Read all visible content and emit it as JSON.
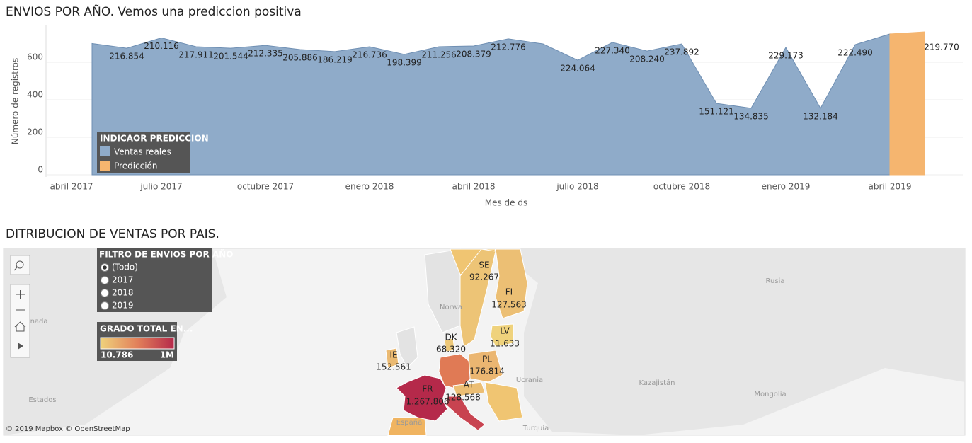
{
  "chart_data": [
    {
      "type": "area",
      "title": "ENVIOS POR AÑO. Vemos una prediccion positiva",
      "x_label": "Mes de ds",
      "y_label": "Número de registros",
      "categories": [
        "abril 2017",
        null,
        null,
        "julio 2017",
        null,
        null,
        "octubre 2017",
        null,
        null,
        "enero 2018",
        null,
        null,
        "abril 2018",
        null,
        null,
        "julio 2018",
        null,
        null,
        "octubre 2018",
        null,
        null,
        "enero 2019",
        null,
        null,
        "abril 2019",
        null
      ],
      "series": [
        {
          "name": "Ventas reales",
          "color": "#8fabc9",
          "values": [
            null,
            700,
            675,
            730,
            683,
            675,
            690,
            668,
            657,
            683,
            642,
            683,
            687,
            725,
            698,
            611,
            706,
            660,
            698,
            381,
            355,
            679,
            355,
            694,
            751,
            null
          ],
          "data_labels": [
            null,
            null,
            "216.854",
            "210.116",
            "217.911",
            "201.544",
            "212.335",
            "205.886",
            "186.219",
            "216.736",
            "198.399",
            "211.256",
            "208.379",
            "212.776",
            null,
            "224.064",
            "227.340",
            "208.240",
            "237.892",
            "151.121",
            "134.835",
            "229.173",
            "132.184",
            "222.490",
            null,
            null
          ]
        },
        {
          "name": "Predicción",
          "color": "#f5b56f",
          "values": [
            null,
            null,
            null,
            null,
            null,
            null,
            null,
            null,
            null,
            null,
            null,
            null,
            null,
            null,
            null,
            null,
            null,
            null,
            null,
            null,
            null,
            null,
            null,
            null,
            751,
            762
          ],
          "data_labels": [
            null,
            null,
            null,
            null,
            null,
            null,
            null,
            null,
            null,
            null,
            null,
            null,
            null,
            null,
            null,
            null,
            null,
            null,
            null,
            null,
            null,
            null,
            null,
            null,
            null,
            "219.770"
          ]
        }
      ],
      "legend_title": "INDICAOR PREDICCION",
      "ylim": [
        0,
        800
      ],
      "yticks": [
        0,
        200,
        400,
        600
      ],
      "grid": true
    },
    {
      "type": "map",
      "title": "DITRIBUCION DE VENTAS POR PAIS.",
      "regions": [
        {
          "code": "FR",
          "value": 1267806,
          "value_label": "1.267.806"
        },
        {
          "code": "SE",
          "value": 92267,
          "value_label": "92.267"
        },
        {
          "code": "FI",
          "value": 127563,
          "value_label": "127.563"
        },
        {
          "code": "DK",
          "value": 68320,
          "value_label": "68.320"
        },
        {
          "code": "LV",
          "value": 11633,
          "value_label": "11.633"
        },
        {
          "code": "IE",
          "value": 152561,
          "value_label": "152.561"
        },
        {
          "code": "PL",
          "value": 176814,
          "value_label": "176.814"
        },
        {
          "code": "AT",
          "value": 128568,
          "value_label": "128.568"
        }
      ],
      "color_legend": {
        "title": "GRADO TOTAL EN...",
        "colors": [
          "#efd27c",
          "#e2805a",
          "#b5294a"
        ],
        "ticks": [
          {
            "value": 10786,
            "label": "10.786"
          },
          {
            "value": 1000000,
            "label": "1M"
          }
        ]
      },
      "filter": {
        "title": "FILTRO DE ENVIOS POR AÑO",
        "options": [
          "(Todo)",
          "2017",
          "2018",
          "2019"
        ],
        "selected": 0
      },
      "place_labels": [
        "Rusia",
        "Norwa",
        "anada",
        "Ucrania",
        "Kazajistán",
        "Mongolia",
        "España",
        "Turquía",
        "Estados"
      ],
      "attribution": "© 2019 Mapbox © OpenStreetMap"
    }
  ]
}
